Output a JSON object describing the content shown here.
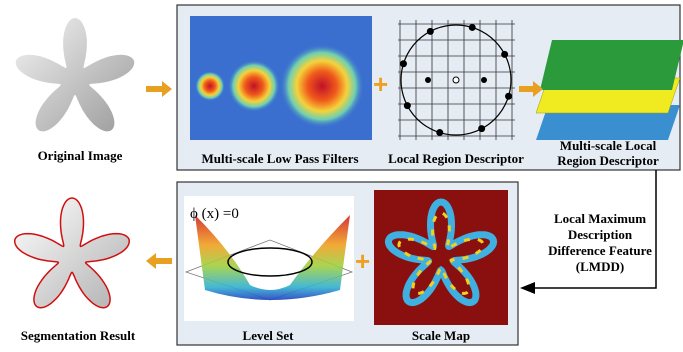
{
  "nodes": [
    {
      "label": "Original Image"
    },
    {
      "label": "Multi-scale Low Pass Filters"
    },
    {
      "label": "Local Region Descriptor"
    },
    {
      "lines": [
        "Multi-scale Local",
        "Region Descriptor"
      ]
    },
    {
      "lines": [
        "Local Maximum",
        "Description",
        "Difference Feature",
        "(LMDD)"
      ]
    },
    {
      "label": "Scale Map"
    },
    {
      "label": "Level Set",
      "equation": "ϕ (x) =0"
    },
    {
      "label": "Segmentation Result"
    }
  ]
}
